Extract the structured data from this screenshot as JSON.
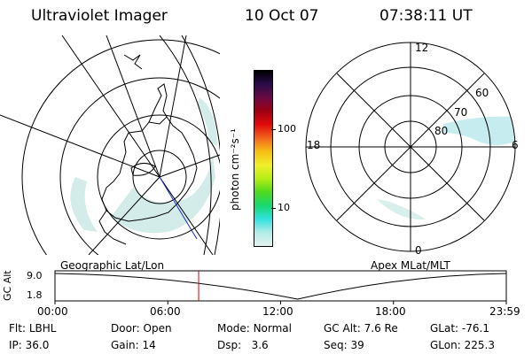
{
  "header": {
    "instrument": "Ultraviolet Imager",
    "date": "10 Oct 07",
    "time": "07:38:11 UT"
  },
  "colorbar": {
    "label": "photon cm⁻²s⁻¹",
    "ticks": [
      "100",
      "10"
    ],
    "colors": [
      "#000000",
      "#2a0c4a",
      "#6a0a44",
      "#9d0012",
      "#e10a0a",
      "#f2661e",
      "#f5c014",
      "#f0f02a",
      "#b6ee16",
      "#4ed91e",
      "#18d870",
      "#32e0e0",
      "#b4ece8",
      "#e2f2ee"
    ]
  },
  "left_map": {
    "caption": "Geographic Lat/Lon"
  },
  "right_map": {
    "caption": "Apex MLat/MLT",
    "mlt_labels": {
      "top": "12",
      "left": "18",
      "right": "6",
      "bottom": "0"
    },
    "lat_labels": [
      "60",
      "70",
      "80"
    ]
  },
  "timeline": {
    "ylabel": "GC Alt",
    "y_ticks": [
      "9.0",
      "1.8"
    ],
    "x_ticks": [
      "00:00",
      "06:00",
      "12:00",
      "18:00",
      "23:59"
    ],
    "current_time_hours": 7.64,
    "perigee_time_hours": 12.9
  },
  "status": {
    "flt_label": "Flt:",
    "flt_value": "LBHL",
    "ip_label": "IP:",
    "ip_value": "36.0",
    "door_label": "Door:",
    "door_value": "Open",
    "gain_label": "Gain:",
    "gain_value": "14",
    "mode_label": "Mode:",
    "mode_value": "Normal",
    "dsp_label": "Dsp:",
    "dsp_value": "3.6",
    "gcalt_label": "GC Alt:",
    "gcalt_value": "7.6 Re",
    "seq_label": "Seq:",
    "seq_value": "39",
    "glat_label": "GLat:",
    "glat_value": "-76.1",
    "glon_label": "GLon:",
    "glon_value": "225.3"
  }
}
